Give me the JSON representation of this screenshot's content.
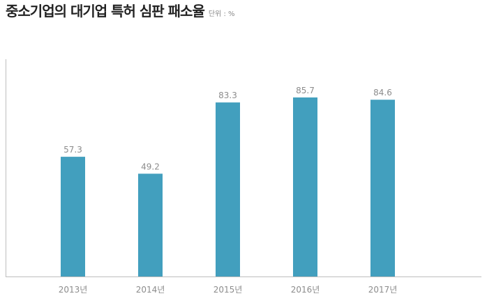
{
  "chart_data": {
    "type": "bar",
    "title": "중소기업의 대기업 특허 심판 패소율",
    "unit": "단위 : %",
    "categories": [
      "2013년",
      "2014년",
      "2015년",
      "2016년",
      "2017년"
    ],
    "values": [
      57.3,
      49.2,
      83.3,
      85.7,
      84.6
    ],
    "value_labels": [
      "57.3",
      "49.2",
      "83.3",
      "85.7",
      "84.6"
    ],
    "xlabel": "",
    "ylabel": "",
    "ylim": [
      0,
      100
    ],
    "grid": false,
    "legend": "none",
    "bar_color": "#429fbe"
  }
}
